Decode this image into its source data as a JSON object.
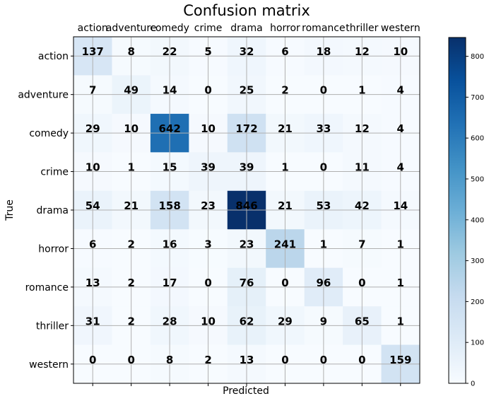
{
  "chart_data": {
    "type": "heatmap",
    "title": "Confusion matrix",
    "xlabel": "Predicted",
    "ylabel": "True",
    "x_categories": [
      "action",
      "adventure",
      "comedy",
      "crime",
      "drama",
      "horror",
      "romance",
      "thriller",
      "western"
    ],
    "y_categories": [
      "action",
      "adventure",
      "comedy",
      "crime",
      "drama",
      "horror",
      "romance",
      "thriller",
      "western"
    ],
    "values": [
      [
        137,
        8,
        22,
        5,
        32,
        6,
        18,
        12,
        10
      ],
      [
        7,
        49,
        14,
        0,
        25,
        2,
        0,
        1,
        4
      ],
      [
        29,
        10,
        642,
        10,
        172,
        21,
        33,
        12,
        4
      ],
      [
        10,
        1,
        15,
        39,
        39,
        1,
        0,
        11,
        4
      ],
      [
        54,
        21,
        158,
        23,
        846,
        21,
        53,
        42,
        14
      ],
      [
        6,
        2,
        16,
        3,
        23,
        241,
        1,
        7,
        1
      ],
      [
        13,
        2,
        17,
        0,
        76,
        0,
        96,
        0,
        1
      ],
      [
        31,
        2,
        28,
        10,
        62,
        29,
        9,
        65,
        1
      ],
      [
        0,
        0,
        8,
        2,
        13,
        0,
        0,
        0,
        159
      ]
    ],
    "colormap": "Blues",
    "vmin": 0,
    "vmax": 846,
    "colorbar_ticks": [
      0,
      100,
      200,
      300,
      400,
      500,
      600,
      700,
      800
    ],
    "grid": true
  }
}
